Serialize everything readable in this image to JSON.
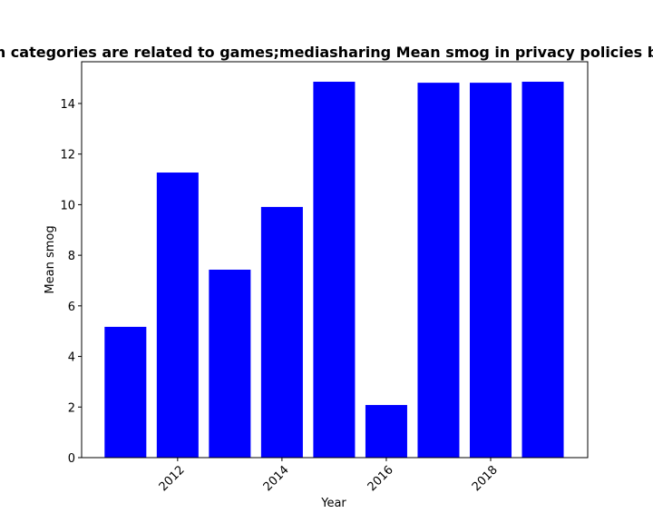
{
  "chart_data": {
    "type": "bar",
    "title": "n categories are related to games;mediasharing Mean smog in privacy policies b",
    "x_label": "Year",
    "y_label": "Mean smog",
    "x": [
      2011,
      2012,
      2013,
      2014,
      2015,
      2016,
      2017,
      2018,
      2019
    ],
    "values": [
      5.17,
      11.27,
      7.43,
      9.91,
      14.86,
      2.08,
      14.82,
      14.82,
      14.86
    ],
    "color": "#0000ff",
    "xlim": [
      2010.16,
      2019.86
    ],
    "xticks": [
      2012,
      2014,
      2016,
      2018
    ],
    "ylim": [
      0,
      15.65
    ],
    "yticks": [
      0,
      2,
      4,
      6,
      8,
      10,
      12,
      14
    ]
  }
}
